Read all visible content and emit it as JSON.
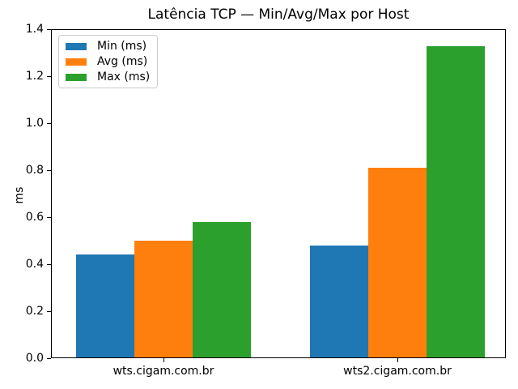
{
  "chart_data": {
    "type": "bar",
    "title": "Latência TCP — Min/Avg/Max por Host",
    "categories": [
      "wts.cigam.com.br",
      "wts2.cigam.com.br"
    ],
    "series": [
      {
        "name": "Min (ms)",
        "color": "#1f77b4",
        "values": [
          0.44,
          0.48
        ]
      },
      {
        "name": "Avg (ms)",
        "color": "#ff7f0e",
        "values": [
          0.5,
          0.81
        ]
      },
      {
        "name": "Max (ms)",
        "color": "#2ca02c",
        "values": [
          0.58,
          1.33
        ]
      }
    ],
    "xlabel": "",
    "ylabel": "ms",
    "ylim": [
      0.0,
      1.4
    ],
    "yticks": [
      0.0,
      0.2,
      0.4,
      0.6,
      0.8,
      1.0,
      1.2,
      1.4
    ],
    "ytick_labels": [
      "0.0",
      "0.2",
      "0.4",
      "0.6",
      "0.8",
      "1.0",
      "1.2",
      "1.4"
    ],
    "grid": false,
    "legend_position": "upper left",
    "colors": {
      "spine": "#000000",
      "background": "#ffffff",
      "legend_border": "#cccccc",
      "text": "#000000"
    }
  }
}
